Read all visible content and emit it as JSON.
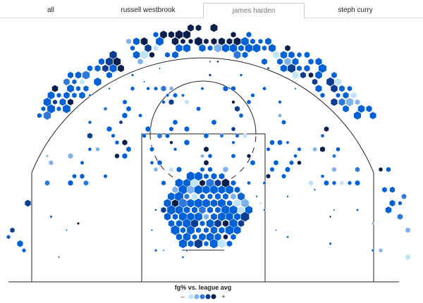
{
  "tabs": [
    "all",
    "russell westbrook",
    "james harden",
    "steph curry"
  ],
  "active_tab": 2,
  "legend": {
    "title": "fg% vs. league avg",
    "low": "–",
    "high": "+",
    "colors": [
      "#bfe3f7",
      "#7fb2ea",
      "#2f78db",
      "#0a3d91",
      "#0b1f4d"
    ]
  }
}
